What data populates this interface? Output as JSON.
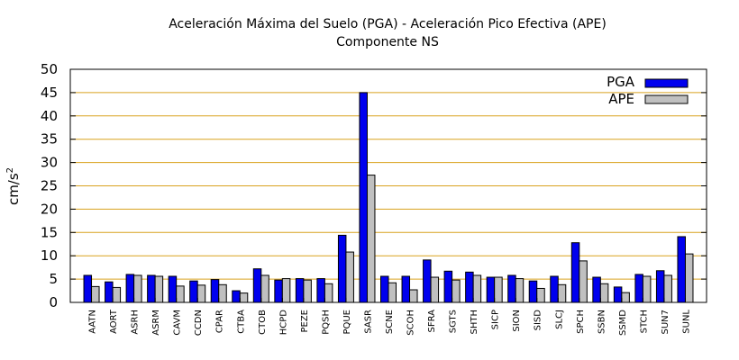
{
  "chart_data": {
    "type": "bar",
    "title": "Aceleración Máxima del Suelo (PGA) -  Aceleración Pico Efectiva (APE)",
    "subtitle": "Componente NS",
    "xlabel": "",
    "ylabel": "cm/s",
    "ylabel_superscript": "2",
    "ylim": [
      0,
      50
    ],
    "yticks": [
      0,
      5,
      10,
      15,
      20,
      25,
      30,
      35,
      40,
      45,
      50
    ],
    "grid": "horizontal",
    "legend_position": "top-right",
    "categories": [
      "AATN",
      "AORT",
      "ASRH",
      "ASRM",
      "CAVM",
      "CCDN",
      "CPAR",
      "CTBA",
      "CTOB",
      "HCPD",
      "PEZE",
      "PQSH",
      "PQUE",
      "SASR",
      "SCNE",
      "SCOH",
      "SFRA",
      "SGTS",
      "SHTH",
      "SICP",
      "SION",
      "SISD",
      "SLCJ",
      "SPCH",
      "SSBN",
      "SSMD",
      "STCH",
      "SUN7",
      "SUNL"
    ],
    "series": [
      {
        "name": "PGA",
        "color": "#0000ee",
        "values": [
          5.8,
          4.4,
          6.0,
          5.8,
          5.6,
          4.6,
          4.9,
          2.5,
          7.2,
          4.8,
          5.1,
          5.1,
          14.4,
          45.0,
          5.6,
          5.6,
          9.1,
          6.7,
          6.5,
          5.4,
          5.8,
          4.6,
          5.6,
          12.8,
          5.4,
          3.3,
          6.0,
          6.8,
          14.1
        ]
      },
      {
        "name": "APE",
        "color": "#c0c0c0",
        "values": [
          3.4,
          3.2,
          5.8,
          5.6,
          3.5,
          3.7,
          3.8,
          2.0,
          5.8,
          5.1,
          4.8,
          4.0,
          10.8,
          27.3,
          4.2,
          2.7,
          5.4,
          4.8,
          5.8,
          5.4,
          5.1,
          3.0,
          3.8,
          8.9,
          4.0,
          2.1,
          5.6,
          5.8,
          10.4
        ]
      }
    ]
  }
}
